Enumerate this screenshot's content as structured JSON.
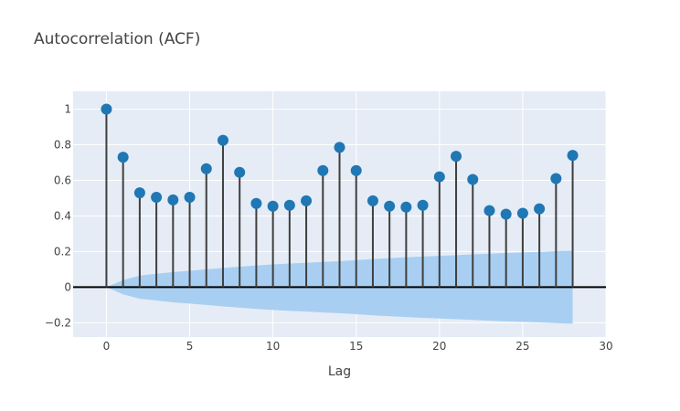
{
  "chart_data": {
    "type": "stem",
    "title": "Autocorrelation (ACF)",
    "xlabel": "Lag",
    "ylabel": "",
    "xlim": [
      -2,
      30
    ],
    "ylim": [
      -0.28,
      1.1
    ],
    "x_ticks": [
      0,
      5,
      10,
      15,
      20,
      25,
      30
    ],
    "x_tick_labels": [
      "0",
      "5",
      "10",
      "15",
      "20",
      "25",
      "30"
    ],
    "y_ticks": [
      -0.2,
      0,
      0.2,
      0.4,
      0.6,
      0.8,
      1
    ],
    "y_tick_labels": [
      "−0.2",
      "0",
      "0.2",
      "0.4",
      "0.6",
      "0.8",
      "1"
    ],
    "grid": true,
    "lags": [
      0,
      1,
      2,
      3,
      4,
      5,
      6,
      7,
      8,
      9,
      10,
      11,
      12,
      13,
      14,
      15,
      16,
      17,
      18,
      19,
      20,
      21,
      22,
      23,
      24,
      25,
      26,
      27,
      28
    ],
    "acf": [
      1.0,
      0.73,
      0.53,
      0.505,
      0.49,
      0.505,
      0.665,
      0.825,
      0.645,
      0.47,
      0.455,
      0.46,
      0.485,
      0.655,
      0.785,
      0.655,
      0.485,
      0.455,
      0.45,
      0.46,
      0.62,
      0.735,
      0.605,
      0.43,
      0.41,
      0.415,
      0.44,
      0.61,
      0.74
    ],
    "confidence_upper": [
      0.0,
      0.04,
      0.065,
      0.075,
      0.085,
      0.092,
      0.1,
      0.108,
      0.115,
      0.122,
      0.128,
      0.133,
      0.137,
      0.142,
      0.146,
      0.152,
      0.158,
      0.163,
      0.168,
      0.172,
      0.176,
      0.18,
      0.184,
      0.188,
      0.192,
      0.195,
      0.198,
      0.202,
      0.205
    ],
    "confidence_lower": [
      0.0,
      -0.04,
      -0.065,
      -0.075,
      -0.085,
      -0.092,
      -0.1,
      -0.108,
      -0.115,
      -0.122,
      -0.128,
      -0.133,
      -0.137,
      -0.142,
      -0.146,
      -0.152,
      -0.158,
      -0.163,
      -0.168,
      -0.172,
      -0.176,
      -0.18,
      -0.184,
      -0.188,
      -0.192,
      -0.195,
      -0.198,
      -0.202,
      -0.205
    ],
    "colors": {
      "plot_background": "#e5ecf6",
      "grid": "#ffffff",
      "stem": "#3f3f3f",
      "marker": "#1f77b4",
      "confidence_band": "#a8cff2",
      "zero_line": "#000000",
      "text": "#444444"
    }
  }
}
